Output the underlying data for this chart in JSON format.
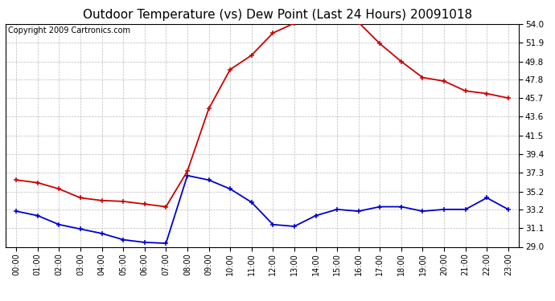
{
  "title": "Outdoor Temperature (vs) Dew Point (Last 24 Hours) 20091018",
  "copyright": "Copyright 2009 Cartronics.com",
  "hours": [
    "00:00",
    "01:00",
    "02:00",
    "03:00",
    "04:00",
    "05:00",
    "06:00",
    "07:00",
    "08:00",
    "09:00",
    "10:00",
    "11:00",
    "12:00",
    "13:00",
    "14:00",
    "15:00",
    "16:00",
    "17:00",
    "18:00",
    "19:00",
    "20:00",
    "21:00",
    "22:00",
    "23:00"
  ],
  "temp": [
    36.5,
    36.2,
    35.5,
    34.5,
    34.2,
    34.1,
    33.8,
    33.5,
    37.5,
    44.5,
    48.9,
    50.5,
    53.0,
    54.1,
    54.3,
    54.3,
    54.2,
    51.8,
    49.8,
    48.0,
    47.6,
    46.5,
    46.2,
    45.7
  ],
  "dewpoint": [
    33.0,
    32.5,
    31.5,
    31.0,
    30.5,
    29.8,
    29.5,
    29.4,
    37.0,
    36.5,
    35.5,
    34.0,
    31.5,
    31.3,
    32.5,
    33.2,
    33.0,
    33.5,
    33.5,
    33.0,
    33.2,
    33.2,
    34.5,
    33.2
  ],
  "temp_color": "#cc0000",
  "dewpoint_color": "#0000cc",
  "yticks": [
    29.0,
    31.1,
    33.2,
    35.2,
    37.3,
    39.4,
    41.5,
    43.6,
    45.7,
    47.8,
    49.8,
    51.9,
    54.0
  ],
  "ymin": 29.0,
  "ymax": 54.0,
  "bg_color": "#ffffff",
  "grid_color": "#bbbbbb",
  "title_fontsize": 11,
  "copyright_fontsize": 7
}
